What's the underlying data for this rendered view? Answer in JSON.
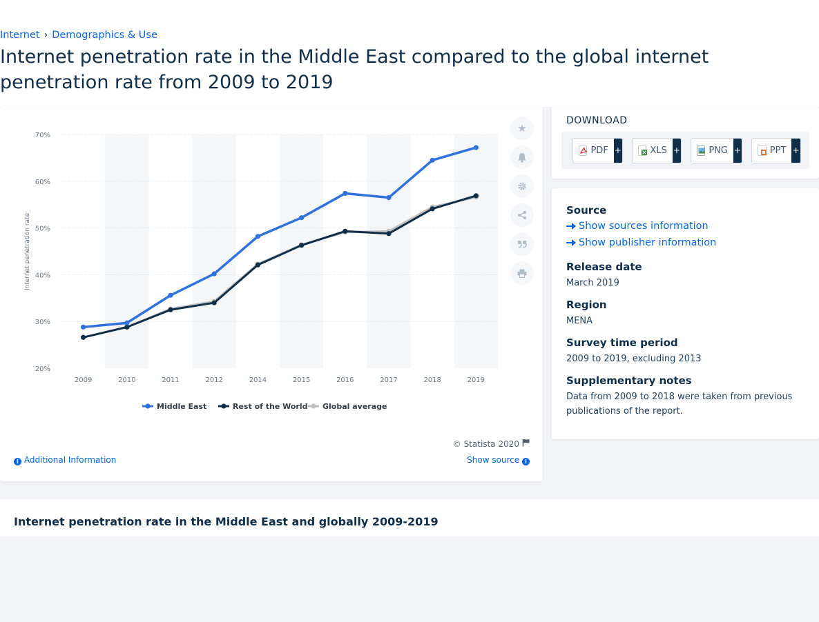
{
  "breadcrumb": {
    "items": [
      "Internet",
      "Demographics & Use"
    ],
    "separator": "›"
  },
  "page_title": "Internet penetration rate in the Middle East compared to the global internet penetration rate from 2009 to 2019",
  "chart_data": {
    "type": "line",
    "x": [
      "2009",
      "2010",
      "2011",
      "2012",
      "2014",
      "2015",
      "2016",
      "2017",
      "2018",
      "2019"
    ],
    "series": [
      {
        "name": "Middle East",
        "color": "#2f72de",
        "values": [
          28.8,
          29.7,
          35.6,
          40.2,
          48.2,
          52.2,
          57.4,
          56.5,
          64.5,
          67.2
        ]
      },
      {
        "name": "Rest of the World",
        "color": "#0f2e4a",
        "values": [
          26.6,
          28.8,
          32.5,
          34.0,
          42.1,
          46.3,
          49.3,
          48.8,
          54.1,
          56.9
        ]
      },
      {
        "name": "Global average",
        "color": "#bfbfbf",
        "values": [
          26.6,
          28.8,
          32.7,
          34.3,
          42.3,
          46.4,
          49.1,
          49.3,
          54.5,
          56.6
        ]
      }
    ],
    "ylabel": "Internet penetration rate",
    "ylim": [
      20,
      70
    ],
    "yticks": [
      "20%",
      "30%",
      "40%",
      "50%",
      "60%",
      "70%"
    ],
    "grid": true,
    "legend": "bottom"
  },
  "chart_footer": {
    "copyright": "© Statista 2020",
    "additional_info": "Additional Information",
    "show_source": "Show source"
  },
  "icons": {
    "toolbar": [
      "star-icon",
      "bell-icon",
      "gear-icon",
      "share-icon",
      "quote-icon",
      "print-icon"
    ],
    "flag": "flag-icon"
  },
  "download": {
    "title": "DOWNLOAD",
    "buttons": [
      {
        "label": "PDF",
        "plus": "+"
      },
      {
        "label": "XLS",
        "plus": "+"
      },
      {
        "label": "PNG",
        "plus": "+"
      },
      {
        "label": "PPT",
        "plus": "+"
      }
    ]
  },
  "info": {
    "source_label": "Source",
    "show_sources": "Show sources information",
    "show_publisher": "Show publisher information",
    "release_label": "Release date",
    "release_value": "March 2019",
    "region_label": "Region",
    "region_value": "MENA",
    "survey_label": "Survey time period",
    "survey_value": "2009 to 2019, excluding 2013",
    "notes_label": "Supplementary notes",
    "notes_value": "Data from 2009 to 2018 were taken from previous publications of the report."
  },
  "bottom_title": "Internet penetration rate in the Middle East and globally 2009-2019"
}
